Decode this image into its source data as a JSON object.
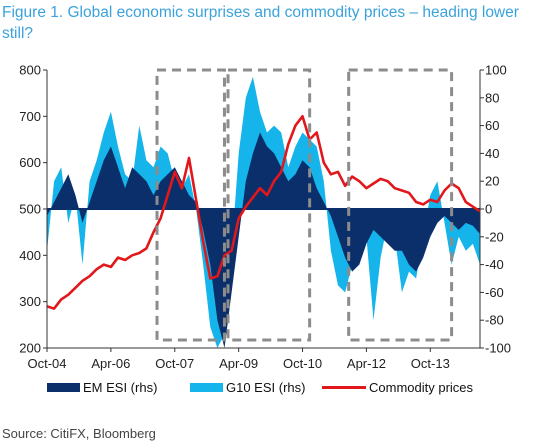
{
  "title": "Figure 1. Global economic surprises and commodity prices – heading lower still?",
  "source": "Source: CitiFX, Bloomberg",
  "chart_data": {
    "type": "area",
    "x_tick_labels": [
      "Oct-04",
      "Apr-06",
      "Oct-07",
      "Apr-09",
      "Oct-10",
      "Apr-12",
      "Oct-13"
    ],
    "x_range": [
      "2004-10",
      "2014-12"
    ],
    "y_left_ticks": [
      200,
      300,
      400,
      500,
      600,
      700,
      800
    ],
    "y_left_range": [
      200,
      800
    ],
    "y_right_ticks": [
      -100,
      -80,
      -60,
      -40,
      -20,
      0,
      20,
      40,
      60,
      80,
      100
    ],
    "y_right_range": [
      -100,
      100
    ],
    "legend_position": "bottom",
    "highlight_periods": [
      [
        "2007-05",
        "2008-12"
      ],
      [
        "2009-01",
        "2010-12"
      ],
      [
        "2011-11",
        "2014-04"
      ]
    ],
    "series": [
      {
        "name": "EM ESI (rhs)",
        "axis": "right",
        "color": "#0b2f6a",
        "dates": [
          "2004-10",
          "2004-12",
          "2005-02",
          "2005-04",
          "2005-06",
          "2005-08",
          "2005-10",
          "2005-12",
          "2006-02",
          "2006-04",
          "2006-06",
          "2006-08",
          "2006-10",
          "2006-12",
          "2007-02",
          "2007-04",
          "2007-06",
          "2007-08",
          "2007-10",
          "2007-12",
          "2008-02",
          "2008-04",
          "2008-06",
          "2008-08",
          "2008-10",
          "2008-12",
          "2009-02",
          "2009-04",
          "2009-06",
          "2009-08",
          "2009-10",
          "2009-12",
          "2010-02",
          "2010-04",
          "2010-06",
          "2010-08",
          "2010-10",
          "2010-12",
          "2011-02",
          "2011-04",
          "2011-06",
          "2011-08",
          "2011-10",
          "2011-12",
          "2012-02",
          "2012-04",
          "2012-06",
          "2012-08",
          "2012-10",
          "2012-12",
          "2013-02",
          "2013-04",
          "2013-06",
          "2013-08",
          "2013-10",
          "2013-12",
          "2014-02",
          "2014-04",
          "2014-06",
          "2014-08",
          "2014-10",
          "2014-12"
        ],
        "values": [
          -5,
          5,
          15,
          25,
          10,
          -10,
          5,
          20,
          35,
          45,
          30,
          15,
          30,
          25,
          20,
          10,
          20,
          25,
          30,
          20,
          10,
          5,
          -15,
          -40,
          -80,
          -100,
          -60,
          -20,
          20,
          40,
          55,
          45,
          40,
          30,
          20,
          25,
          35,
          30,
          15,
          5,
          -5,
          -20,
          -35,
          -45,
          -40,
          -25,
          -15,
          -20,
          -25,
          -30,
          -30,
          -40,
          -45,
          -35,
          -20,
          -10,
          -5,
          -10,
          -15,
          -10,
          -12,
          -18
        ]
      },
      {
        "name": "G10 ESI (rhs)",
        "axis": "right",
        "color": "#15b4ea",
        "dates": [
          "2004-10",
          "2004-12",
          "2005-02",
          "2005-04",
          "2005-06",
          "2005-08",
          "2005-10",
          "2005-12",
          "2006-02",
          "2006-04",
          "2006-06",
          "2006-08",
          "2006-10",
          "2006-12",
          "2007-02",
          "2007-04",
          "2007-06",
          "2007-08",
          "2007-10",
          "2007-12",
          "2008-02",
          "2008-04",
          "2008-06",
          "2008-08",
          "2008-10",
          "2008-12",
          "2009-02",
          "2009-04",
          "2009-06",
          "2009-08",
          "2009-10",
          "2009-12",
          "2010-02",
          "2010-04",
          "2010-06",
          "2010-08",
          "2010-10",
          "2010-12",
          "2011-02",
          "2011-04",
          "2011-06",
          "2011-08",
          "2011-10",
          "2011-12",
          "2012-02",
          "2012-04",
          "2012-06",
          "2012-08",
          "2012-10",
          "2012-12",
          "2013-02",
          "2013-04",
          "2013-06",
          "2013-08",
          "2013-10",
          "2013-12",
          "2014-02",
          "2014-04",
          "2014-06",
          "2014-08",
          "2014-10",
          "2014-12"
        ],
        "values": [
          -30,
          20,
          30,
          -10,
          10,
          -40,
          20,
          35,
          55,
          70,
          45,
          25,
          20,
          60,
          35,
          30,
          45,
          40,
          20,
          15,
          25,
          0,
          -40,
          -85,
          -100,
          -90,
          -30,
          40,
          80,
          95,
          70,
          55,
          60,
          55,
          30,
          45,
          55,
          50,
          45,
          20,
          -30,
          -55,
          -60,
          -40,
          -25,
          -20,
          -80,
          -35,
          -10,
          -20,
          -60,
          -45,
          -50,
          -20,
          10,
          20,
          -10,
          -40,
          -20,
          -30,
          -25,
          -40
        ]
      },
      {
        "name": "Commodity prices",
        "axis": "left",
        "color": "#e2171b",
        "dates": [
          "2004-10",
          "2004-12",
          "2005-02",
          "2005-04",
          "2005-06",
          "2005-08",
          "2005-10",
          "2005-12",
          "2006-02",
          "2006-04",
          "2006-06",
          "2006-08",
          "2006-10",
          "2006-12",
          "2007-02",
          "2007-04",
          "2007-06",
          "2007-08",
          "2007-10",
          "2007-12",
          "2008-02",
          "2008-04",
          "2008-06",
          "2008-08",
          "2008-10",
          "2008-12",
          "2009-02",
          "2009-04",
          "2009-06",
          "2009-08",
          "2009-10",
          "2009-12",
          "2010-02",
          "2010-04",
          "2010-06",
          "2010-08",
          "2010-10",
          "2010-12",
          "2011-02",
          "2011-04",
          "2011-06",
          "2011-08",
          "2011-10",
          "2011-12",
          "2012-02",
          "2012-04",
          "2012-06",
          "2012-08",
          "2012-10",
          "2012-12",
          "2013-02",
          "2013-04",
          "2013-06",
          "2013-08",
          "2013-10",
          "2013-12",
          "2014-02",
          "2014-04",
          "2014-06",
          "2014-08",
          "2014-10",
          "2014-12"
        ],
        "values": [
          290,
          285,
          305,
          315,
          330,
          345,
          355,
          370,
          380,
          375,
          395,
          390,
          400,
          405,
          415,
          450,
          480,
          530,
          580,
          545,
          610,
          520,
          430,
          350,
          355,
          400,
          410,
          480,
          505,
          525,
          545,
          530,
          560,
          580,
          640,
          680,
          700,
          650,
          665,
          600,
          575,
          580,
          550,
          570,
          560,
          545,
          555,
          565,
          560,
          545,
          540,
          535,
          515,
          510,
          520,
          515,
          540,
          555,
          545,
          515,
          505,
          495
        ]
      }
    ]
  }
}
